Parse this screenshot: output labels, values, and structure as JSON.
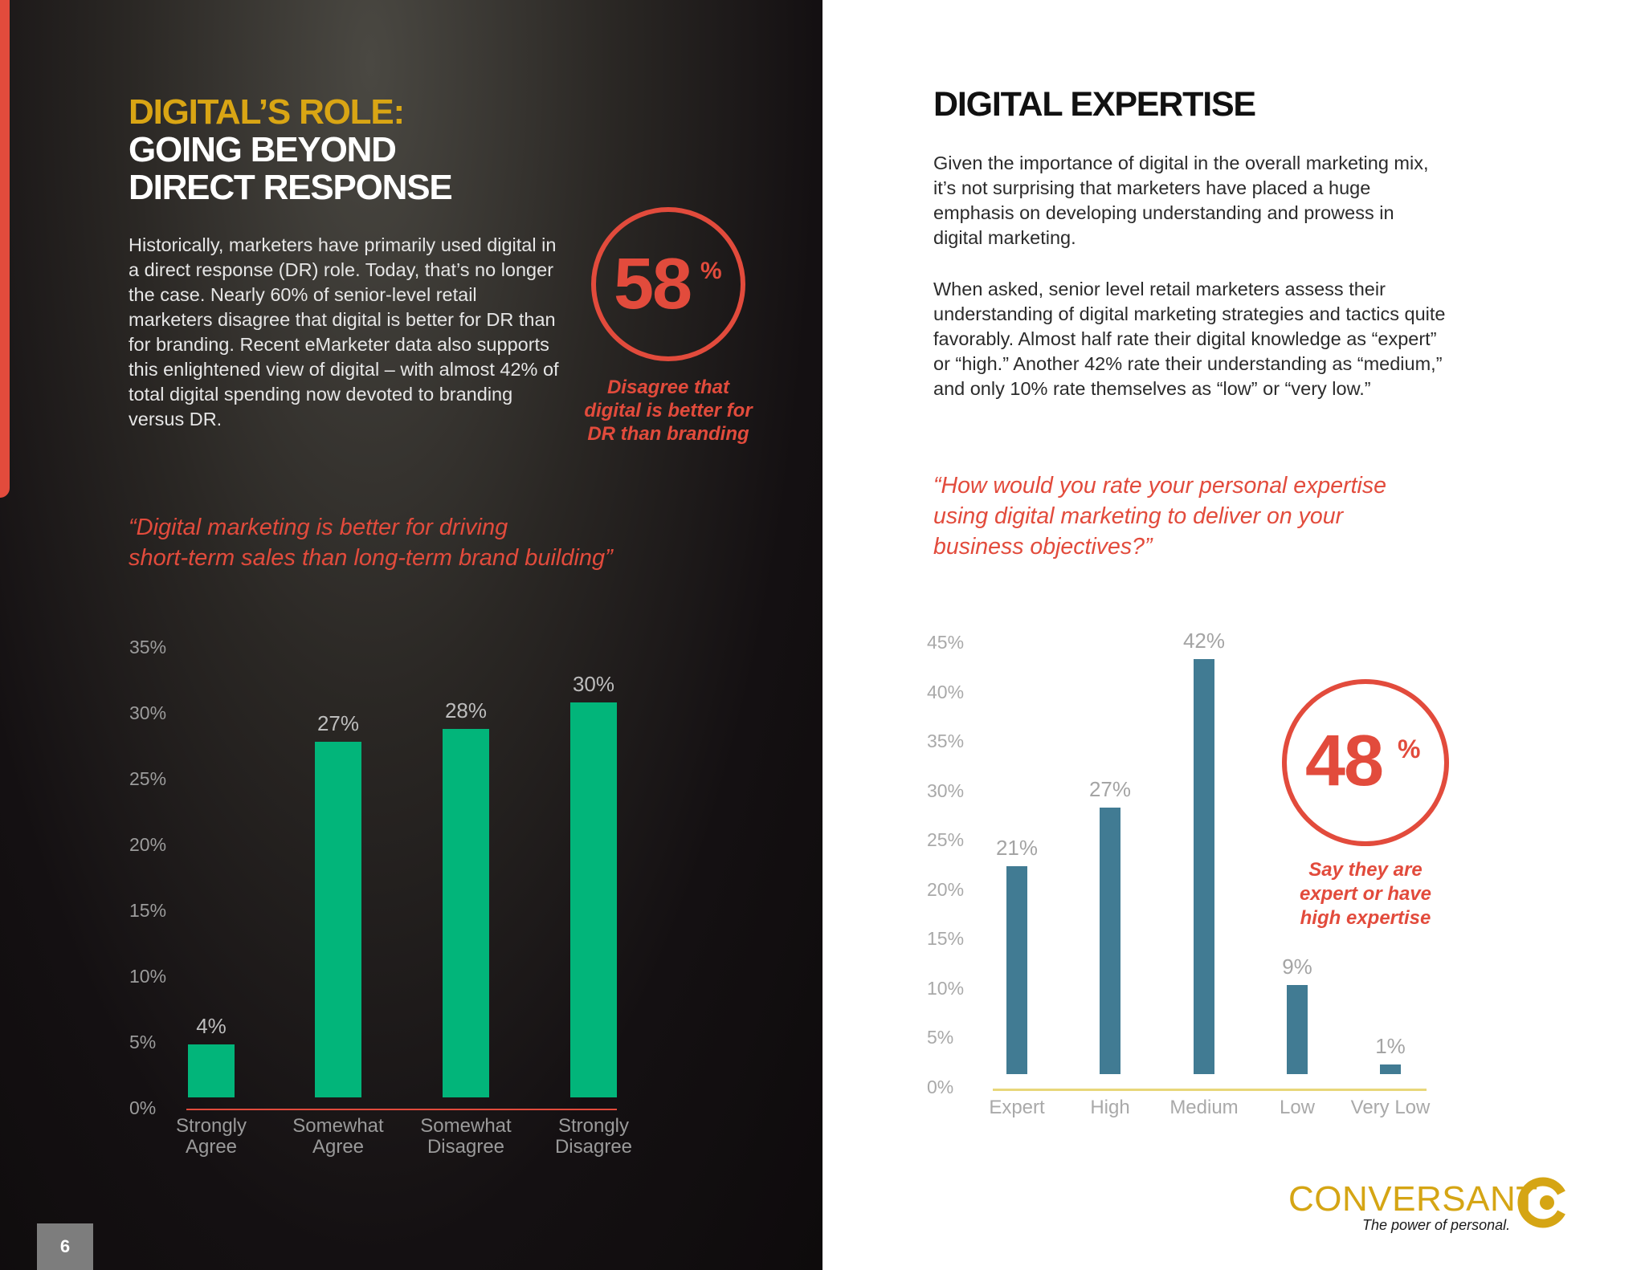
{
  "page_number": "6",
  "left": {
    "title_line1": "DIGITAL’S ROLE:",
    "title_line2": "GOING BEYOND",
    "title_line3": "DIRECT RESPONSE",
    "intro": "Historically, marketers have primarily used digital in a direct response (DR) role. Today, that’s no longer the case. Nearly 60% of senior-level retail marketers disagree that digital is better for DR than for branding. Recent eMarketer data also supports this enlightened view of digital – with almost 42% of total digital spending now devoted to branding versus DR.",
    "stat_number": "58",
    "stat_unit": "%",
    "stat_caption_line1": "Disagree that",
    "stat_caption_line2": "digital is better for",
    "stat_caption_line3": "DR than branding",
    "quote_line1": "“Digital marketing is better for driving",
    "quote_line2": "short-term sales than long-term brand building”"
  },
  "right": {
    "heading": "DIGITAL EXPERTISE",
    "para1": "Given the importance of digital in the overall marketing mix, it’s not surprising that marketers have placed a huge emphasis on developing understanding and prowess in digital marketing.",
    "para2": "When asked, senior level retail marketers assess their understanding of digital marketing strategies and tactics quite favorably. Almost half rate their digital knowledge as “expert” or “high.” Another 42% rate their understanding as “medium,” and only 10% rate themselves as “low” or “very low.”",
    "quote_line1": "“How would you rate your personal expertise",
    "quote_line2": "using digital marketing to deliver on your",
    "quote_line3": "business objectives?”",
    "stat_number": "48",
    "stat_unit": "%",
    "stat_caption_line1": "Say they are",
    "stat_caption_line2": "expert or have",
    "stat_caption_line3": "high expertise"
  },
  "chart_data": [
    {
      "type": "bar",
      "title": "“Digital marketing is better for driving short-term sales than long-term brand building”",
      "categories": [
        [
          "Strongly",
          "Agree"
        ],
        [
          "Somewhat",
          "Agree"
        ],
        [
          "Somewhat",
          "Disagree"
        ],
        [
          "Strongly",
          "Disagree"
        ]
      ],
      "values": [
        4,
        27,
        28,
        30
      ],
      "value_labels": [
        "4%",
        "27%",
        "28%",
        "30%"
      ],
      "y_ticks": [
        "35%",
        "30%",
        "25%",
        "20%",
        "15%",
        "10%",
        "5%",
        "0%"
      ],
      "ylim": [
        0,
        35
      ],
      "bar_color": "#02b57a",
      "axis_color": "#e24b3c"
    },
    {
      "type": "bar",
      "title": "“How would you rate your personal expertise using digital marketing to deliver on your business objectives?”",
      "categories": [
        "Expert",
        "High",
        "Medium",
        "Low",
        "Very Low"
      ],
      "values": [
        21,
        27,
        42,
        9,
        1
      ],
      "value_labels": [
        "21%",
        "27%",
        "42%",
        "9%",
        "1%"
      ],
      "y_ticks": [
        "45%",
        "40%",
        "35%",
        "30%",
        "25%",
        "20%",
        "15%",
        "10%",
        "5%",
        "0%"
      ],
      "ylim": [
        0,
        45
      ],
      "bar_color": "#417b93",
      "axis_color": "#e8d77a"
    }
  ],
  "logo": {
    "name": "CONVERSANT",
    "tagline": "The power of personal.",
    "color": "#d5a514"
  }
}
